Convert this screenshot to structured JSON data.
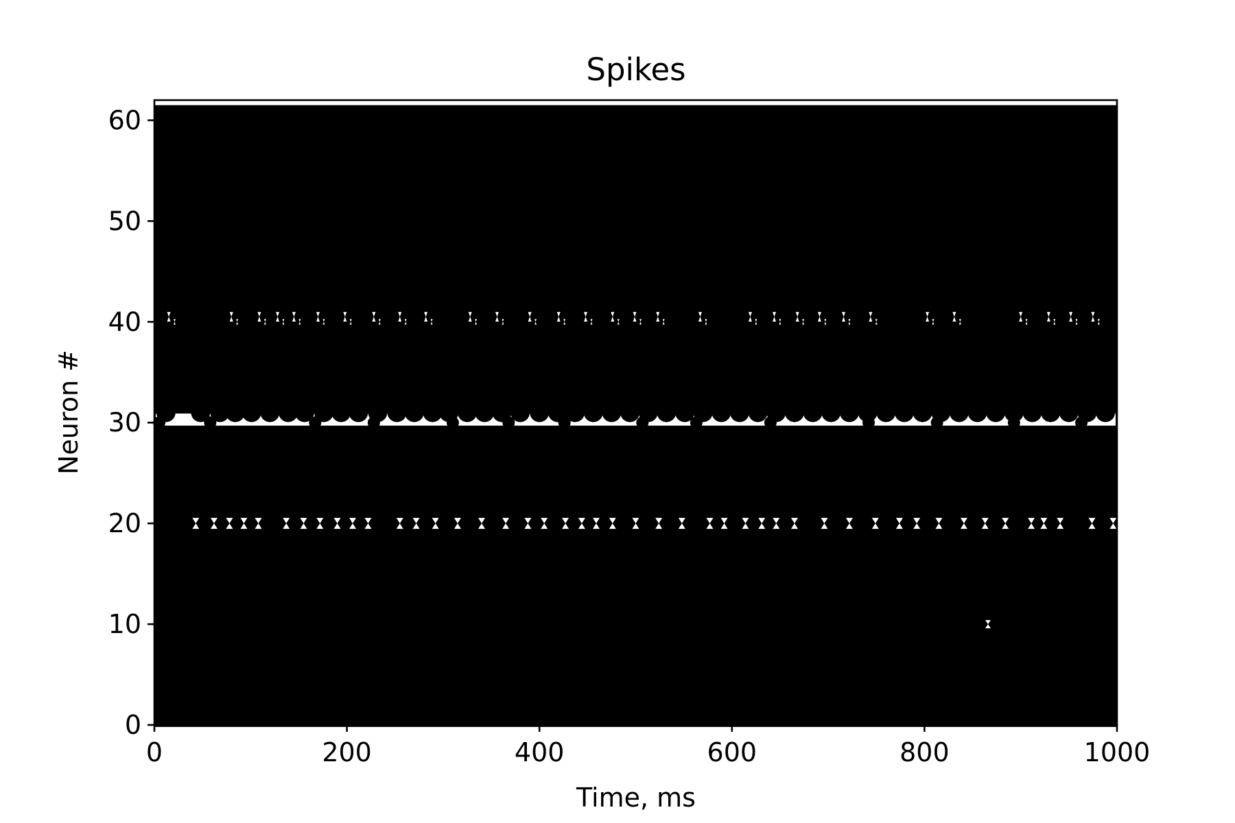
{
  "chart_data": {
    "type": "scatter",
    "title": "Spikes",
    "xlabel": "Time, ms",
    "ylabel": "Neuron #",
    "xlim": [
      0,
      1000
    ],
    "ylim": [
      0,
      62
    ],
    "x_ticks": [
      0,
      200,
      400,
      600,
      800,
      1000
    ],
    "y_ticks": [
      0,
      10,
      20,
      30,
      40,
      50,
      60
    ],
    "x_tick_labels": [
      "0",
      "200",
      "400",
      "600",
      "800",
      "1000"
    ],
    "y_tick_labels": [
      "0",
      "10",
      "20",
      "30",
      "40",
      "50",
      "60"
    ],
    "grid": false,
    "legend": "none",
    "marker_color": "#000000",
    "background_color": "#ffffff",
    "series": [
      {
        "neurons": [
          30
        ],
        "spike_times": [
          5,
          58,
          167,
          228,
          310,
          368,
          426,
          507,
          563,
          640,
          742,
          813,
          893,
          963
        ]
      },
      {
        "neurons": [
          31
        ],
        "spike_times": [
          12,
          48,
          68,
          84,
          101,
          120,
          139,
          156,
          176,
          194,
          212,
          232,
          252,
          270,
          289,
          306,
          325,
          343,
          361,
          380,
          400,
          419,
          437,
          456,
          475,
          494,
          513,
          532,
          551,
          570,
          589,
          608,
          627,
          646,
          665,
          684,
          703,
          722,
          741,
          760,
          779,
          798,
          817,
          836,
          855,
          874,
          893,
          912,
          931,
          950,
          969,
          988
        ]
      }
    ],
    "gaps": {
      "neuron_20_times": [
        43,
        62,
        78,
        93,
        108,
        137,
        155,
        172,
        190,
        206,
        222,
        255,
        272,
        292,
        315,
        340,
        365,
        388,
        405,
        427,
        444,
        459,
        476,
        500,
        524,
        548,
        577,
        592,
        614,
        631,
        646,
        665,
        696,
        722,
        749,
        774,
        792,
        815,
        841,
        863,
        884,
        911,
        924,
        941,
        974,
        996
      ],
      "neuron_40_times": [
        15,
        80,
        109,
        128,
        145,
        170,
        198,
        228,
        255,
        282,
        328,
        356,
        390,
        420,
        448,
        476,
        499,
        523,
        567,
        619,
        644,
        668,
        691,
        716,
        744,
        803,
        831,
        900,
        929,
        952,
        975
      ],
      "neuron_10_times": [
        866
      ],
      "neuron_61_times": [
        0,
        1000
      ]
    }
  }
}
